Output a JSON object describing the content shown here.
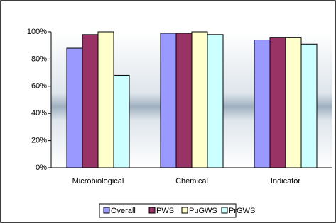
{
  "chart_data": {
    "type": "bar",
    "categories": [
      "Microbiological",
      "Chemical",
      "Indicator"
    ],
    "series": [
      {
        "name": "Overall",
        "color": "#9999ff",
        "values": [
          88,
          99,
          94
        ]
      },
      {
        "name": "PWS",
        "color": "#993366",
        "values": [
          98,
          99,
          96
        ]
      },
      {
        "name": "PuGWS",
        "color": "#ffffcc",
        "values": [
          100,
          100,
          96
        ]
      },
      {
        "name": "PrGWS",
        "color": "#ccffff",
        "values": [
          68,
          98,
          91
        ]
      }
    ],
    "ylim": [
      0,
      100
    ],
    "yticks": [
      {
        "value": 0,
        "label": "0%"
      },
      {
        "value": 20,
        "label": "20%"
      },
      {
        "value": 40,
        "label": "40%"
      },
      {
        "value": 60,
        "label": "60%"
      },
      {
        "value": 80,
        "label": "80%"
      },
      {
        "value": 100,
        "label": "100%"
      }
    ],
    "legend": "bottom"
  }
}
